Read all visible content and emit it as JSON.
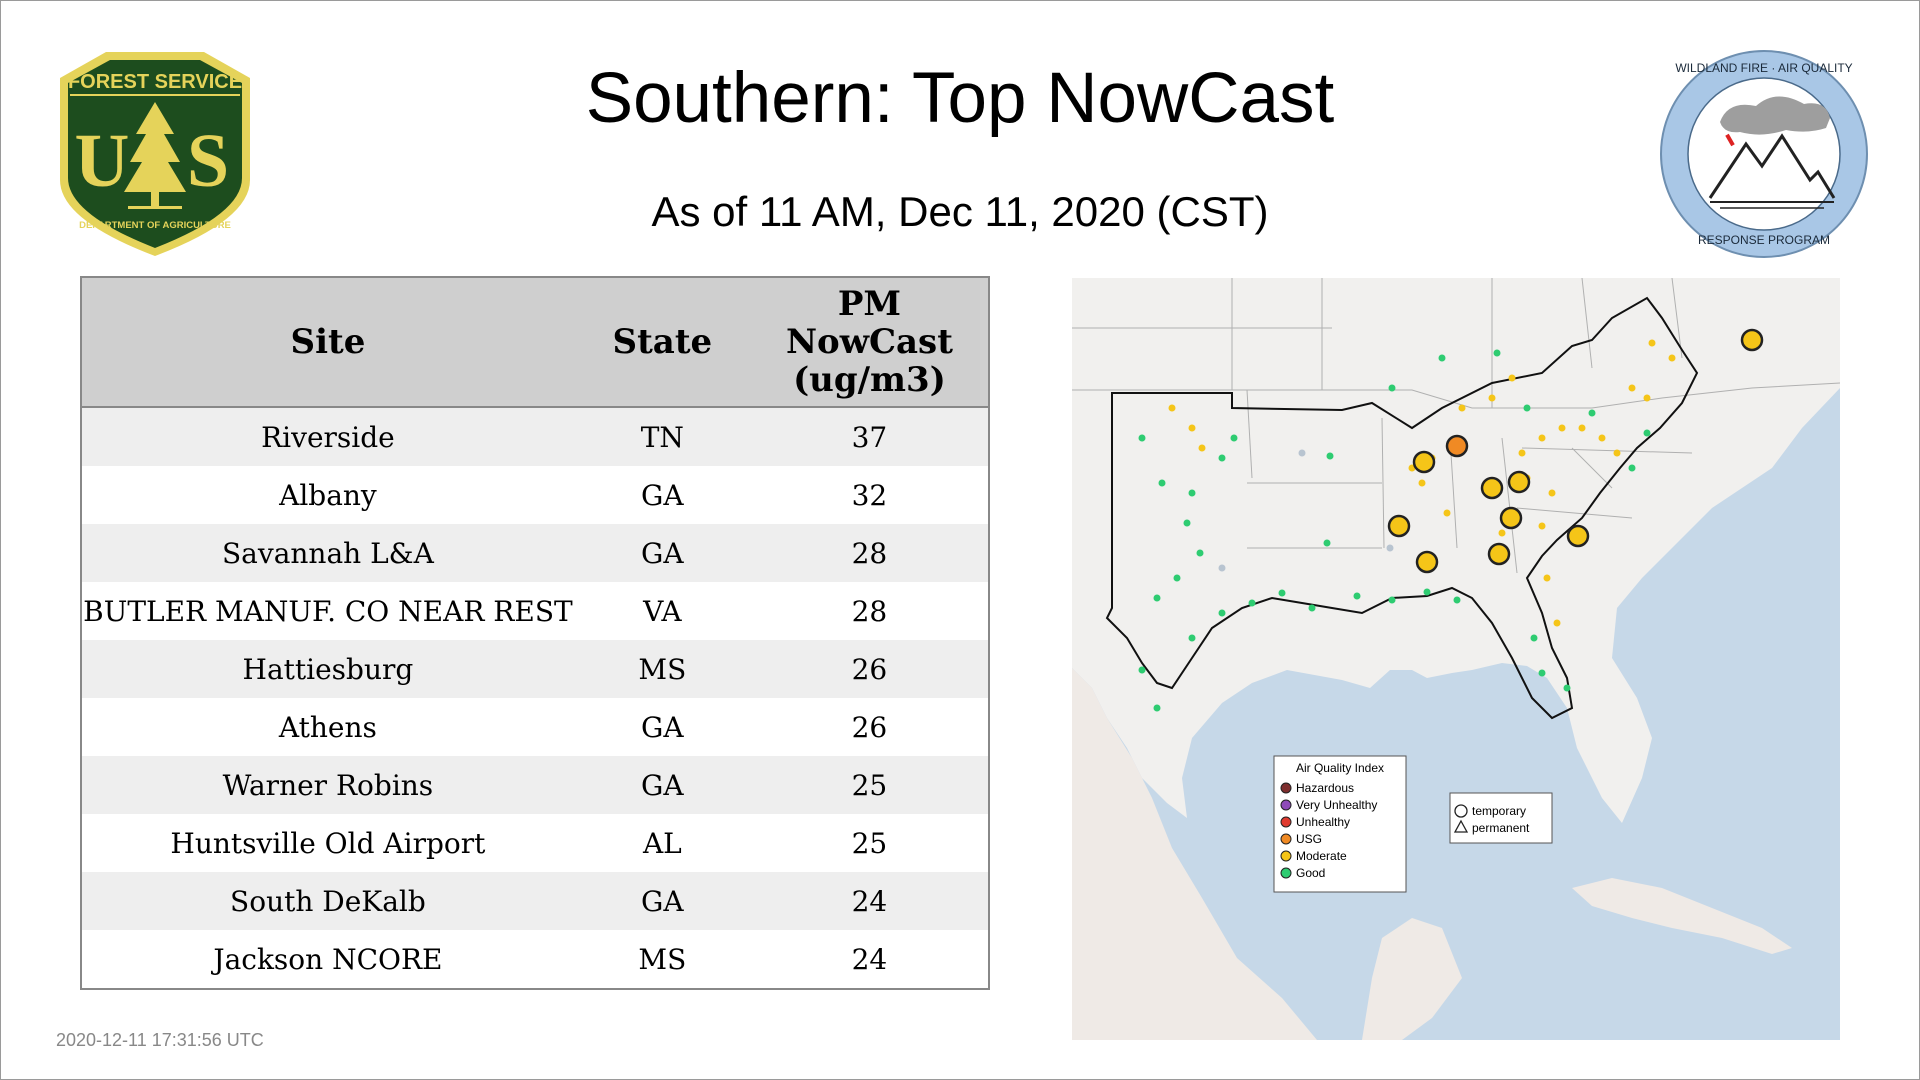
{
  "header": {
    "title": "Southern: Top NowCast",
    "subtitle": "As of 11 AM, Dec 11, 2020 (CST)"
  },
  "logos": {
    "forest_service": {
      "top_text": "FOREST SERVICE",
      "letters": [
        "U",
        "S"
      ],
      "bottom_text": "DEPARTMENT OF AGRICULTURE",
      "colors": {
        "green": "#1d4d1e",
        "gold": "#e5d35a"
      }
    },
    "wildland": {
      "top_text": "WILDLAND FIRE · AIR QUALITY",
      "bottom_text": "RESPONSE PROGRAM",
      "colors": {
        "ring": "#a9c7e6",
        "smoke": "#9e9e9e"
      }
    }
  },
  "table": {
    "columns": [
      "Site",
      "State",
      "PM NowCast (ug/m3)"
    ],
    "column_lines": [
      [
        "Site"
      ],
      [
        "State"
      ],
      [
        "PM",
        "NowCast",
        "(ug/m3)"
      ]
    ],
    "rows": [
      {
        "site": "Riverside",
        "state": "TN",
        "pm": "37"
      },
      {
        "site": "Albany",
        "state": "GA",
        "pm": "32"
      },
      {
        "site": "Savannah L&A",
        "state": "GA",
        "pm": "28"
      },
      {
        "site": "BUTLER MANUF. CO NEAR REST",
        "state": "VA",
        "pm": "28"
      },
      {
        "site": "Hattiesburg",
        "state": "MS",
        "pm": "26"
      },
      {
        "site": "Athens",
        "state": "GA",
        "pm": "26"
      },
      {
        "site": "Warner Robins",
        "state": "GA",
        "pm": "25"
      },
      {
        "site": "Huntsville Old Airport",
        "state": "AL",
        "pm": "25"
      },
      {
        "site": "South DeKalb",
        "state": "GA",
        "pm": "24"
      },
      {
        "site": "Jackson NCORE",
        "state": "MS",
        "pm": "24"
      }
    ]
  },
  "map": {
    "colors": {
      "water": "#c6d8e8",
      "land": "#f1f0ee",
      "border": "#b0b0b0",
      "region_border": "#111111"
    },
    "aqi_legend": {
      "title": "Air Quality Index",
      "items": [
        {
          "label": "Hazardous",
          "color": "#7e2e2e"
        },
        {
          "label": "Very Unhealthy",
          "color": "#8e4bb8"
        },
        {
          "label": "Unhealthy",
          "color": "#e03a2f"
        },
        {
          "label": "USG",
          "color": "#f08a24"
        },
        {
          "label": "Moderate",
          "color": "#f5c518"
        },
        {
          "label": "Good",
          "color": "#2ecc71"
        }
      ]
    },
    "type_legend": {
      "items": [
        {
          "label": "temporary",
          "shape": "circle"
        },
        {
          "label": "permanent",
          "shape": "triangle"
        }
      ]
    }
  },
  "footer": {
    "timestamp": "2020-12-11 17:31:56 UTC"
  }
}
